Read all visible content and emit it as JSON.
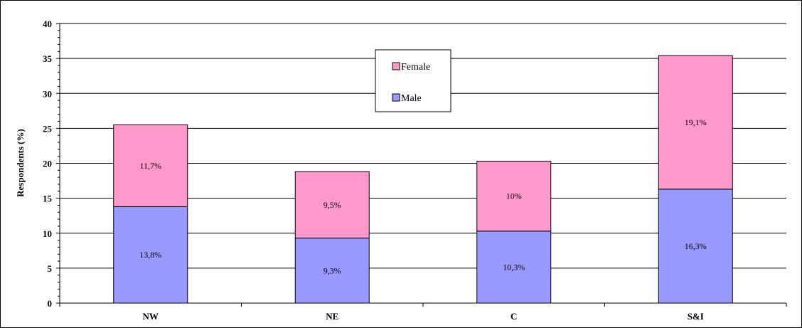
{
  "chart_data": {
    "type": "bar",
    "stacked": true,
    "categories": [
      "NW",
      "NE",
      "C",
      "S&I"
    ],
    "series": [
      {
        "name": "Male",
        "values": [
          13.8,
          9.3,
          10.3,
          16.3
        ],
        "labels": [
          "13,8%",
          "9,3%",
          "10,3%",
          "16,3%"
        ],
        "color": "#9999ff"
      },
      {
        "name": "Female",
        "values": [
          11.7,
          9.5,
          10.0,
          19.1
        ],
        "labels": [
          "11,7%",
          "9,5%",
          "10%",
          "19,1%"
        ],
        "color": "#ff99cc"
      }
    ],
    "xlabel": "",
    "ylabel": "Respondents (%)",
    "ylim": [
      0,
      40
    ],
    "yticks": [
      0,
      5,
      10,
      15,
      20,
      25,
      30,
      35,
      40
    ],
    "grid": true,
    "legend_position": "top-center",
    "legend_order": [
      "Female",
      "Male"
    ]
  }
}
